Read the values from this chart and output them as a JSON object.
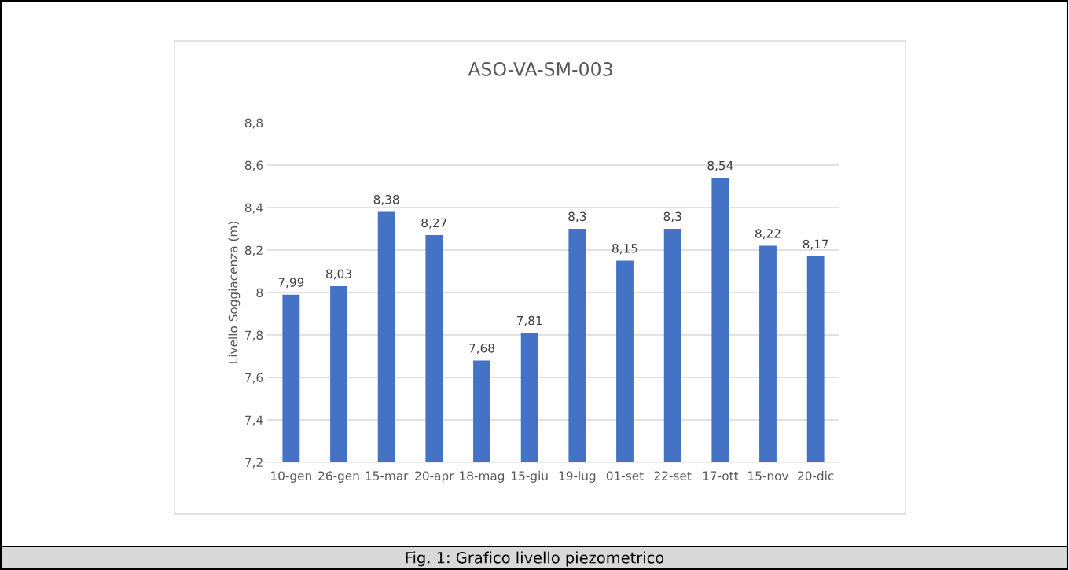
{
  "chart_data": {
    "type": "bar",
    "title": "ASO-VA-SM-003",
    "ylabel": "Livello Soggiacenza (m)",
    "categories": [
      "10-gen",
      "26-gen",
      "15-mar",
      "20-apr",
      "18-mag",
      "15-giu",
      "19-lug",
      "01-set",
      "22-set",
      "17-ott",
      "15-nov",
      "20-dic"
    ],
    "values": [
      7.99,
      8.03,
      8.38,
      8.27,
      7.68,
      7.81,
      8.3,
      8.15,
      8.3,
      8.54,
      8.22,
      8.17
    ],
    "value_labels": [
      "7,99",
      "8,03",
      "8,38",
      "8,27",
      "7,68",
      "7,81",
      "8,3",
      "8,15",
      "8,3",
      "8,54",
      "8,22",
      "8,17"
    ],
    "color": "#4472c4",
    "ylim": [
      7.2,
      8.8
    ],
    "yticks": [
      {
        "value": 7.2,
        "label": "7,2"
      },
      {
        "value": 7.4,
        "label": "7,4"
      },
      {
        "value": 7.6,
        "label": "7,6"
      },
      {
        "value": 7.8,
        "label": "7,8"
      },
      8,
      {
        "value": 8.2,
        "label": "8,2"
      },
      {
        "value": 8.4,
        "label": "8,4"
      },
      {
        "value": 8.6,
        "label": "8,6"
      },
      {
        "value": 8.8,
        "label": "8,8"
      }
    ],
    "grid": "y",
    "annotations": [
      "Fig. 1: Grafico livello piezometrico"
    ]
  }
}
